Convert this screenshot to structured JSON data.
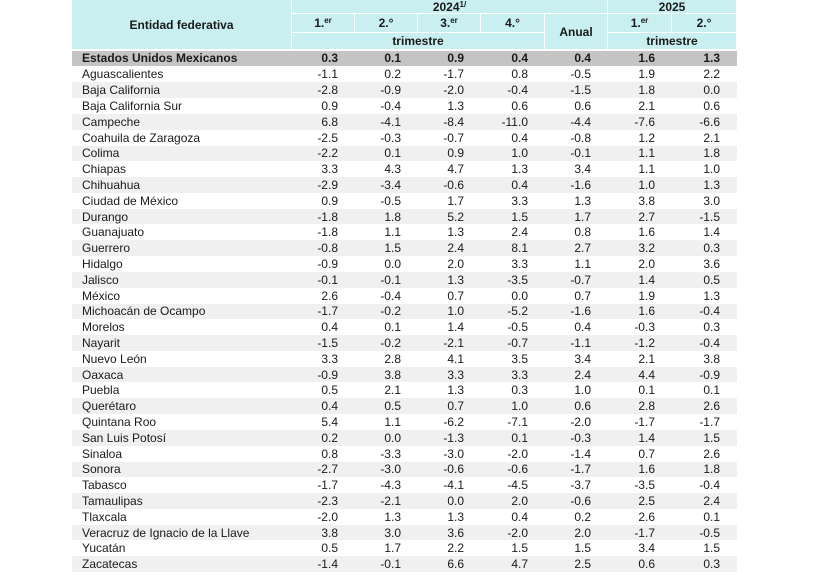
{
  "header": {
    "entity": "Entidad federativa",
    "year1": {
      "main": "2024",
      "sup": "1/"
    },
    "year2": "2025",
    "quarters1": [
      {
        "main": "1.",
        "sup": "er"
      },
      "2.°",
      {
        "main": "3.",
        "sup": "er"
      },
      "4.°"
    ],
    "annual": "Anual",
    "quarters2": [
      {
        "main": "1.",
        "sup": "er"
      },
      "2.°"
    ],
    "subtitle1": "trimestre",
    "subtitle2": "trimestre"
  },
  "table": {
    "total": {
      "name": "Estados Unidos Mexicanos",
      "values": [
        "0.3",
        "0.1",
        "0.9",
        "0.4",
        "0.4",
        "1.6",
        "1.3"
      ]
    },
    "rows": [
      {
        "name": "Aguascalientes",
        "values": [
          "-1.1",
          "0.2",
          "-1.7",
          "0.8",
          "-0.5",
          "1.9",
          "2.2"
        ]
      },
      {
        "name": "Baja California",
        "values": [
          "-2.8",
          "-0.9",
          "-2.0",
          "-0.4",
          "-1.5",
          "1.8",
          "0.0"
        ]
      },
      {
        "name": "Baja California Sur",
        "values": [
          "0.9",
          "-0.4",
          "1.3",
          "0.6",
          "0.6",
          "2.1",
          "0.6"
        ]
      },
      {
        "name": "Campeche",
        "values": [
          "6.8",
          "-4.1",
          "-8.4",
          "-11.0",
          "-4.4",
          "-7.6",
          "-6.6"
        ]
      },
      {
        "name": "Coahuila de Zaragoza",
        "values": [
          "-2.5",
          "-0.3",
          "-0.7",
          "0.4",
          "-0.8",
          "1.2",
          "2.1"
        ]
      },
      {
        "name": "Colima",
        "values": [
          "-2.2",
          "0.1",
          "0.9",
          "1.0",
          "-0.1",
          "1.1",
          "1.8"
        ]
      },
      {
        "name": "Chiapas",
        "values": [
          "3.3",
          "4.3",
          "4.7",
          "1.3",
          "3.4",
          "1.1",
          "1.0"
        ]
      },
      {
        "name": "Chihuahua",
        "values": [
          "-2.9",
          "-3.4",
          "-0.6",
          "0.4",
          "-1.6",
          "1.0",
          "1.3"
        ]
      },
      {
        "name": "Ciudad de México",
        "values": [
          "0.9",
          "-0.5",
          "1.7",
          "3.3",
          "1.3",
          "3.8",
          "3.0"
        ]
      },
      {
        "name": "Durango",
        "values": [
          "-1.8",
          "1.8",
          "5.2",
          "1.5",
          "1.7",
          "2.7",
          "-1.5"
        ]
      },
      {
        "name": "Guanajuato",
        "values": [
          "-1.8",
          "1.1",
          "1.3",
          "2.4",
          "0.8",
          "1.6",
          "1.4"
        ]
      },
      {
        "name": "Guerrero",
        "values": [
          "-0.8",
          "1.5",
          "2.4",
          "8.1",
          "2.7",
          "3.2",
          "0.3"
        ]
      },
      {
        "name": "Hidalgo",
        "values": [
          "-0.9",
          "0.0",
          "2.0",
          "3.3",
          "1.1",
          "2.0",
          "3.6"
        ]
      },
      {
        "name": "Jalisco",
        "values": [
          "-0.1",
          "-0.1",
          "1.3",
          "-3.5",
          "-0.7",
          "1.4",
          "0.5"
        ]
      },
      {
        "name": "México",
        "values": [
          "2.6",
          "-0.4",
          "0.7",
          "0.0",
          "0.7",
          "1.9",
          "1.3"
        ]
      },
      {
        "name": "Michoacán de Ocampo",
        "values": [
          "-1.7",
          "-0.2",
          "1.0",
          "-5.2",
          "-1.6",
          "1.6",
          "-0.4"
        ]
      },
      {
        "name": "Morelos",
        "values": [
          "0.4",
          "0.1",
          "1.4",
          "-0.5",
          "0.4",
          "-0.3",
          "0.3"
        ]
      },
      {
        "name": "Nayarit",
        "values": [
          "-1.5",
          "-0.2",
          "-2.1",
          "-0.7",
          "-1.1",
          "-1.2",
          "-0.4"
        ]
      },
      {
        "name": "Nuevo León",
        "values": [
          "3.3",
          "2.8",
          "4.1",
          "3.5",
          "3.4",
          "2.1",
          "3.8"
        ]
      },
      {
        "name": "Oaxaca",
        "values": [
          "-0.9",
          "3.8",
          "3.3",
          "3.3",
          "2.4",
          "4.4",
          "-0.9"
        ]
      },
      {
        "name": "Puebla",
        "values": [
          "0.5",
          "2.1",
          "1.3",
          "0.3",
          "1.0",
          "0.1",
          "0.1"
        ]
      },
      {
        "name": "Querétaro",
        "values": [
          "0.4",
          "0.5",
          "0.7",
          "1.0",
          "0.6",
          "2.8",
          "2.6"
        ]
      },
      {
        "name": "Quintana Roo",
        "values": [
          "5.4",
          "1.1",
          "-6.2",
          "-7.1",
          "-2.0",
          "-1.7",
          "-1.7"
        ]
      },
      {
        "name": "San Luis Potosí",
        "values": [
          "0.2",
          "0.0",
          "-1.3",
          "0.1",
          "-0.3",
          "1.4",
          "1.5"
        ]
      },
      {
        "name": "Sinaloa",
        "values": [
          "0.8",
          "-3.3",
          "-3.0",
          "-2.0",
          "-1.4",
          "0.7",
          "2.6"
        ]
      },
      {
        "name": "Sonora",
        "values": [
          "-2.7",
          "-3.0",
          "-0.6",
          "-0.6",
          "-1.7",
          "1.6",
          "1.8"
        ]
      },
      {
        "name": "Tabasco",
        "values": [
          "-1.7",
          "-4.3",
          "-4.1",
          "-4.5",
          "-3.7",
          "-3.5",
          "-0.4"
        ]
      },
      {
        "name": "Tamaulipas",
        "values": [
          "-2.3",
          "-2.1",
          "0.0",
          "2.0",
          "-0.6",
          "2.5",
          "2.4"
        ]
      },
      {
        "name": "Tlaxcala",
        "values": [
          "-2.0",
          "1.3",
          "1.3",
          "0.4",
          "0.2",
          "2.6",
          "0.1"
        ]
      },
      {
        "name": "Veracruz de Ignacio de la Llave",
        "values": [
          "3.8",
          "3.0",
          "3.6",
          "-2.0",
          "2.0",
          "-1.7",
          "-0.5"
        ]
      },
      {
        "name": "Yucatán",
        "values": [
          "0.5",
          "1.7",
          "2.2",
          "1.5",
          "1.5",
          "3.4",
          "1.5"
        ]
      },
      {
        "name": "Zacatecas",
        "values": [
          "-1.4",
          "-0.1",
          "6.6",
          "4.7",
          "2.5",
          "0.6",
          "0.3"
        ]
      }
    ]
  }
}
